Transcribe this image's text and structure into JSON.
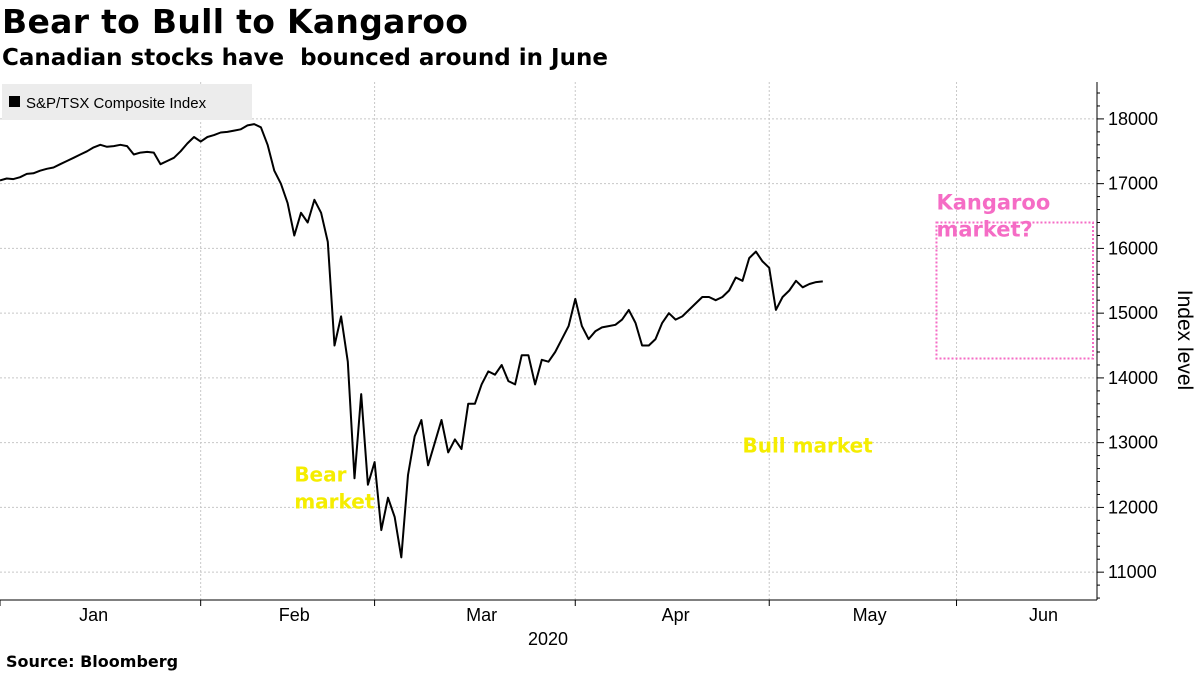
{
  "title": "Bear to Bull to Kangaroo",
  "subtitle": "Canadian stocks have  bounced around in June",
  "source": "Source:  Bloomberg",
  "colors": {
    "line": "#000000",
    "bear_bull": "#f5ed00",
    "kangaroo": "#f56cc5",
    "grid": "#c8c8c8",
    "legend_bg": "#ececec"
  },
  "chart_data": {
    "type": "line",
    "title": "Bear to Bull to Kangaroo",
    "subtitle": "Canadian stocks have  bounced around in June",
    "legend": "S&P/TSX Composite Index",
    "legend_position": "top-left",
    "xlabel": "2020",
    "ylabel": "Index level",
    "year": "2020",
    "ylim": [
      10570,
      18570
    ],
    "yticks": [
      11000,
      12000,
      13000,
      14000,
      15000,
      16000,
      17000,
      18000
    ],
    "ytick_labels": [
      "11000",
      "12000",
      "13000",
      "14000",
      "15000",
      "16000",
      "17000",
      "18000"
    ],
    "x_range_days": [
      0,
      164
    ],
    "month_labels": [
      {
        "label": "Jan",
        "day": 14
      },
      {
        "label": "Feb",
        "day": 44
      },
      {
        "label": "Mar",
        "day": 72
      },
      {
        "label": "Apr",
        "day": 101
      },
      {
        "label": "May",
        "day": 130
      },
      {
        "label": "Jun",
        "day": 156
      }
    ],
    "month_boundaries": [
      0,
      30,
      56,
      86,
      115,
      143
    ],
    "grid": true,
    "series": [
      {
        "name": "S&P/TSX Composite Index",
        "points": [
          [
            0,
            17050
          ],
          [
            1,
            17080
          ],
          [
            2,
            17070
          ],
          [
            3,
            17100
          ],
          [
            4,
            17150
          ],
          [
            5,
            17160
          ],
          [
            6,
            17200
          ],
          [
            7,
            17230
          ],
          [
            8,
            17250
          ],
          [
            9,
            17300
          ],
          [
            10,
            17350
          ],
          [
            11,
            17400
          ],
          [
            12,
            17450
          ],
          [
            13,
            17500
          ],
          [
            14,
            17560
          ],
          [
            15,
            17600
          ],
          [
            16,
            17570
          ],
          [
            17,
            17580
          ],
          [
            18,
            17600
          ],
          [
            19,
            17580
          ],
          [
            20,
            17450
          ],
          [
            21,
            17480
          ],
          [
            22,
            17490
          ],
          [
            23,
            17480
          ],
          [
            24,
            17300
          ],
          [
            25,
            17350
          ],
          [
            26,
            17400
          ],
          [
            27,
            17500
          ],
          [
            28,
            17620
          ],
          [
            29,
            17720
          ],
          [
            30,
            17650
          ],
          [
            31,
            17720
          ],
          [
            32,
            17750
          ],
          [
            33,
            17790
          ],
          [
            34,
            17800
          ],
          [
            35,
            17820
          ],
          [
            36,
            17840
          ],
          [
            37,
            17900
          ],
          [
            38,
            17920
          ],
          [
            39,
            17870
          ],
          [
            40,
            17600
          ],
          [
            41,
            17200
          ],
          [
            42,
            17000
          ],
          [
            43,
            16700
          ],
          [
            44,
            16200
          ],
          [
            45,
            16550
          ],
          [
            46,
            16400
          ],
          [
            47,
            16750
          ],
          [
            48,
            16550
          ],
          [
            49,
            16100
          ],
          [
            50,
            14500
          ],
          [
            51,
            14950
          ],
          [
            52,
            14250
          ],
          [
            53,
            12450
          ],
          [
            54,
            13750
          ],
          [
            55,
            12350
          ],
          [
            56,
            12700
          ],
          [
            57,
            11650
          ],
          [
            58,
            12150
          ],
          [
            59,
            11850
          ],
          [
            60,
            11228
          ],
          [
            61,
            12500
          ],
          [
            62,
            13100
          ],
          [
            63,
            13350
          ],
          [
            64,
            12650
          ],
          [
            65,
            13000
          ],
          [
            66,
            13350
          ],
          [
            67,
            12850
          ],
          [
            68,
            13050
          ],
          [
            69,
            12900
          ],
          [
            70,
            13600
          ],
          [
            71,
            13600
          ],
          [
            72,
            13900
          ],
          [
            73,
            14100
          ],
          [
            74,
            14050
          ],
          [
            75,
            14200
          ],
          [
            76,
            13950
          ],
          [
            77,
            13900
          ],
          [
            78,
            14350
          ],
          [
            79,
            14350
          ],
          [
            80,
            13900
          ],
          [
            81,
            14280
          ],
          [
            82,
            14250
          ],
          [
            83,
            14400
          ],
          [
            84,
            14600
          ],
          [
            85,
            14800
          ],
          [
            86,
            15220
          ],
          [
            87,
            14800
          ],
          [
            88,
            14600
          ],
          [
            89,
            14720
          ],
          [
            90,
            14780
          ],
          [
            91,
            14800
          ],
          [
            92,
            14820
          ],
          [
            93,
            14900
          ],
          [
            94,
            15050
          ],
          [
            95,
            14850
          ],
          [
            96,
            14500
          ],
          [
            97,
            14500
          ],
          [
            98,
            14600
          ],
          [
            99,
            14850
          ],
          [
            100,
            15000
          ],
          [
            101,
            14900
          ],
          [
            102,
            14950
          ],
          [
            103,
            15050
          ],
          [
            104,
            15150
          ],
          [
            105,
            15250
          ],
          [
            106,
            15250
          ],
          [
            107,
            15200
          ],
          [
            108,
            15250
          ],
          [
            109,
            15350
          ],
          [
            110,
            15550
          ],
          [
            111,
            15500
          ],
          [
            112,
            15850
          ],
          [
            113,
            15950
          ],
          [
            114,
            15800
          ],
          [
            115,
            15700
          ],
          [
            116,
            15050
          ],
          [
            117,
            15250
          ],
          [
            118,
            15350
          ],
          [
            119,
            15500
          ],
          [
            120,
            15400
          ],
          [
            121,
            15450
          ],
          [
            122,
            15480
          ],
          [
            123,
            15490
          ]
        ]
      }
    ],
    "annotations": [
      {
        "text_lines": [
          "Bear",
          "market"
        ],
        "at_day": 44,
        "at_value": 12400,
        "color": "#f5ed00"
      },
      {
        "text_lines": [
          "Bull market"
        ],
        "at_day": 111,
        "at_value": 12850,
        "color": "#f5ed00"
      },
      {
        "text_lines": [
          "Kangaroo",
          "market?"
        ],
        "at_day": 140,
        "at_value": 16600,
        "color": "#f56cc5"
      }
    ],
    "highlight_box": {
      "day_start": 140,
      "day_end": 164,
      "value_low": 14300,
      "value_high": 16400,
      "color": "#f56cc5",
      "style": "dotted"
    }
  }
}
